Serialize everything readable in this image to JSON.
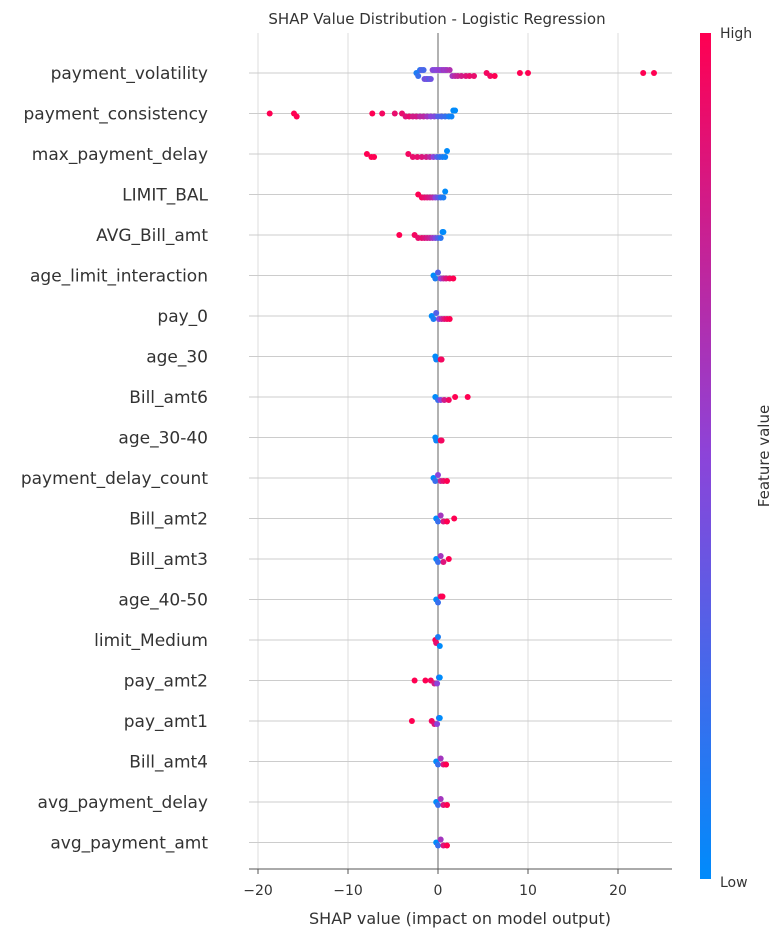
{
  "chart_data": {
    "type": "scatter",
    "title": "SHAP Value Distribution - Logistic Regression",
    "xlabel": "SHAP value (impact on model output)",
    "xlim": [
      -21,
      26
    ],
    "xticks": [
      -20,
      -10,
      0,
      10,
      20
    ],
    "grid": "vertical",
    "colorbar": {
      "label": "Feature value",
      "high_label": "High",
      "low_label": "Low",
      "low_color": "#008bfb",
      "mid_color": "#8c44d9",
      "high_color": "#ff0052"
    },
    "features": [
      {
        "name": "payment_volatility",
        "points": [
          [
            -2.4,
            0.1
          ],
          [
            -2.2,
            0.2
          ],
          [
            -2.0,
            0.15
          ],
          [
            -1.8,
            0.3
          ],
          [
            -1.6,
            0.25
          ],
          [
            -1.5,
            0.4
          ],
          [
            -1.3,
            0.35
          ],
          [
            -1.2,
            0.45
          ],
          [
            -1.0,
            0.3
          ],
          [
            -0.8,
            0.4
          ],
          [
            -0.6,
            0.5
          ],
          [
            -0.4,
            0.45
          ],
          [
            -0.2,
            0.5
          ],
          [
            0.0,
            0.5
          ],
          [
            0.2,
            0.55
          ],
          [
            0.4,
            0.5
          ],
          [
            0.6,
            0.6
          ],
          [
            0.8,
            0.55
          ],
          [
            1.0,
            0.6
          ],
          [
            1.3,
            0.65
          ],
          [
            1.6,
            0.6
          ],
          [
            1.9,
            0.7
          ],
          [
            2.2,
            0.75
          ],
          [
            2.6,
            0.8
          ],
          [
            3.1,
            0.85
          ],
          [
            3.5,
            0.9
          ],
          [
            4.0,
            0.9
          ],
          [
            5.4,
            0.95
          ],
          [
            5.8,
            0.95
          ],
          [
            6.3,
            1.0
          ],
          [
            9.1,
            1.0
          ],
          [
            10.0,
            1.0
          ],
          [
            22.8,
            1.0
          ],
          [
            24.0,
            1.0
          ]
        ]
      },
      {
        "name": "payment_consistency",
        "points": [
          [
            -18.7,
            1.0
          ],
          [
            -16.0,
            1.0
          ],
          [
            -15.7,
            1.0
          ],
          [
            -7.3,
            1.0
          ],
          [
            -6.2,
            0.95
          ],
          [
            -4.8,
            0.9
          ],
          [
            -4.0,
            0.9
          ],
          [
            -3.6,
            0.85
          ],
          [
            -3.2,
            0.9
          ],
          [
            -2.8,
            0.8
          ],
          [
            -2.4,
            0.8
          ],
          [
            -2.0,
            0.7
          ],
          [
            -1.6,
            0.7
          ],
          [
            -1.2,
            0.6
          ],
          [
            -0.8,
            0.5
          ],
          [
            -0.4,
            0.45
          ],
          [
            0.0,
            0.3
          ],
          [
            0.4,
            0.25
          ],
          [
            0.8,
            0.2
          ],
          [
            1.2,
            0.1
          ],
          [
            1.5,
            0.05
          ],
          [
            1.7,
            0.0
          ],
          [
            1.9,
            0.0
          ]
        ]
      },
      {
        "name": "max_payment_delay",
        "points": [
          [
            -7.9,
            1.0
          ],
          [
            -7.4,
            1.0
          ],
          [
            -7.1,
            1.0
          ],
          [
            -3.3,
            0.95
          ],
          [
            -2.8,
            0.9
          ],
          [
            -2.3,
            0.9
          ],
          [
            -1.8,
            0.85
          ],
          [
            -1.3,
            0.8
          ],
          [
            -0.9,
            0.7
          ],
          [
            -0.5,
            0.5
          ],
          [
            -0.1,
            0.3
          ],
          [
            0.2,
            0.2
          ],
          [
            0.5,
            0.1
          ],
          [
            0.8,
            0.05
          ],
          [
            1.0,
            0.0
          ]
        ]
      },
      {
        "name": "LIMIT_BAL",
        "points": [
          [
            -2.2,
            1.0
          ],
          [
            -1.8,
            0.95
          ],
          [
            -1.5,
            0.9
          ],
          [
            -1.2,
            0.85
          ],
          [
            -0.9,
            0.8
          ],
          [
            -0.6,
            0.7
          ],
          [
            -0.3,
            0.5
          ],
          [
            0.0,
            0.35
          ],
          [
            0.3,
            0.2
          ],
          [
            0.6,
            0.1
          ],
          [
            0.8,
            0.0
          ]
        ]
      },
      {
        "name": "AVG_Bill_amt",
        "points": [
          [
            -4.3,
            1.0
          ],
          [
            -2.6,
            0.95
          ],
          [
            -2.2,
            0.9
          ],
          [
            -1.8,
            0.9
          ],
          [
            -1.5,
            0.85
          ],
          [
            -1.2,
            0.8
          ],
          [
            -0.9,
            0.75
          ],
          [
            -0.6,
            0.6
          ],
          [
            -0.3,
            0.45
          ],
          [
            0.0,
            0.3
          ],
          [
            0.3,
            0.15
          ],
          [
            0.5,
            0.05
          ],
          [
            0.6,
            0.0
          ]
        ]
      },
      {
        "name": "age_limit_interaction",
        "points": [
          [
            -0.5,
            0.0
          ],
          [
            -0.3,
            0.1
          ],
          [
            0.0,
            0.3
          ],
          [
            0.3,
            0.5
          ],
          [
            0.6,
            0.7
          ],
          [
            0.9,
            0.85
          ],
          [
            1.3,
            0.95
          ],
          [
            1.7,
            1.0
          ]
        ]
      },
      {
        "name": "pay_0",
        "points": [
          [
            -0.7,
            0.0
          ],
          [
            -0.5,
            0.1
          ],
          [
            -0.2,
            0.3
          ],
          [
            0.1,
            0.5
          ],
          [
            0.4,
            0.7
          ],
          [
            0.7,
            0.85
          ],
          [
            1.0,
            0.95
          ],
          [
            1.3,
            1.0
          ]
        ]
      },
      {
        "name": "age_30",
        "points": [
          [
            -0.3,
            0.0
          ],
          [
            -0.2,
            0.05
          ],
          [
            0.3,
            1.0
          ],
          [
            0.4,
            0.95
          ]
        ]
      },
      {
        "name": "Bill_amt6",
        "points": [
          [
            -0.3,
            0.0
          ],
          [
            0.0,
            0.2
          ],
          [
            0.3,
            0.5
          ],
          [
            0.7,
            0.8
          ],
          [
            1.2,
            0.95
          ],
          [
            1.9,
            1.0
          ],
          [
            3.3,
            1.0
          ]
        ]
      },
      {
        "name": "age_30-40",
        "points": [
          [
            -0.3,
            0.0
          ],
          [
            -0.2,
            0.05
          ],
          [
            0.3,
            1.0
          ],
          [
            0.4,
            0.95
          ]
        ]
      },
      {
        "name": "payment_delay_count",
        "points": [
          [
            -0.5,
            0.0
          ],
          [
            -0.3,
            0.2
          ],
          [
            0.0,
            0.5
          ],
          [
            0.3,
            0.75
          ],
          [
            0.6,
            0.9
          ],
          [
            1.0,
            1.0
          ]
        ]
      },
      {
        "name": "Bill_amt2",
        "points": [
          [
            -0.2,
            0.0
          ],
          [
            0.0,
            0.2
          ],
          [
            0.3,
            0.6
          ],
          [
            0.6,
            0.85
          ],
          [
            1.0,
            1.0
          ],
          [
            1.8,
            1.0
          ]
        ]
      },
      {
        "name": "Bill_amt3",
        "points": [
          [
            -0.2,
            0.0
          ],
          [
            0.0,
            0.2
          ],
          [
            0.3,
            0.6
          ],
          [
            0.6,
            0.85
          ],
          [
            1.2,
            1.0
          ]
        ]
      },
      {
        "name": "age_40-50",
        "points": [
          [
            -0.2,
            0.0
          ],
          [
            0.0,
            0.2
          ],
          [
            0.3,
            0.9
          ],
          [
            0.5,
            1.0
          ]
        ]
      },
      {
        "name": "limit_Medium",
        "points": [
          [
            -0.3,
            1.0
          ],
          [
            -0.2,
            0.9
          ],
          [
            0.0,
            0.1
          ],
          [
            0.2,
            0.0
          ]
        ]
      },
      {
        "name": "pay_amt2",
        "points": [
          [
            -2.6,
            1.0
          ],
          [
            -1.4,
            1.0
          ],
          [
            -0.8,
            0.95
          ],
          [
            -0.4,
            0.8
          ],
          [
            -0.1,
            0.5
          ],
          [
            0.1,
            0.2
          ],
          [
            0.2,
            0.0
          ]
        ]
      },
      {
        "name": "pay_amt1",
        "points": [
          [
            -2.9,
            1.0
          ],
          [
            -0.7,
            0.95
          ],
          [
            -0.4,
            0.85
          ],
          [
            -0.1,
            0.5
          ],
          [
            0.1,
            0.2
          ],
          [
            0.2,
            0.0
          ]
        ]
      },
      {
        "name": "Bill_amt4",
        "points": [
          [
            -0.2,
            0.0
          ],
          [
            0.0,
            0.2
          ],
          [
            0.3,
            0.6
          ],
          [
            0.6,
            0.85
          ],
          [
            0.9,
            1.0
          ]
        ]
      },
      {
        "name": "avg_payment_delay",
        "points": [
          [
            -0.2,
            0.0
          ],
          [
            0.0,
            0.2
          ],
          [
            0.3,
            0.6
          ],
          [
            0.6,
            0.85
          ],
          [
            1.0,
            1.0
          ]
        ]
      },
      {
        "name": "avg_payment_amt",
        "points": [
          [
            -0.2,
            0.0
          ],
          [
            0.0,
            0.2
          ],
          [
            0.3,
            0.6
          ],
          [
            0.6,
            0.85
          ],
          [
            1.0,
            1.0
          ]
        ]
      }
    ]
  }
}
